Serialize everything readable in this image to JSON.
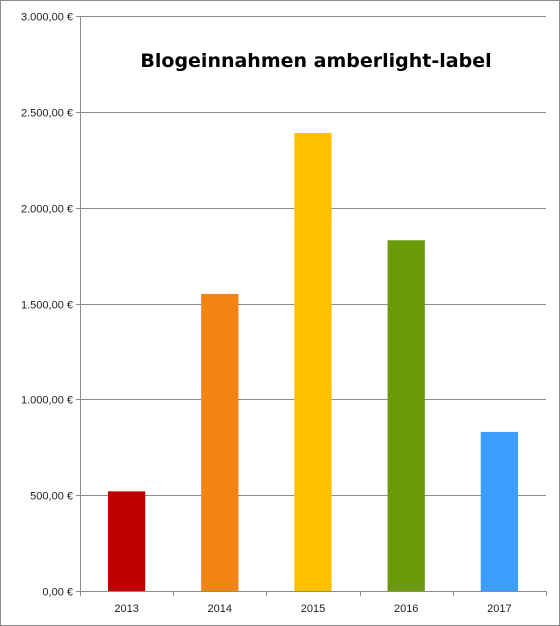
{
  "chart_data": {
    "type": "bar",
    "title": "Blogeinnahmen amberlight-label",
    "xlabel": "",
    "ylabel": "",
    "categories": [
      "2013",
      "2014",
      "2015",
      "2016",
      "2017"
    ],
    "values": [
      520,
      1550,
      2390,
      1830,
      830
    ],
    "colors": [
      "#c00000",
      "#f18414",
      "#ffc000",
      "#6a9a0a",
      "#3a9dff"
    ],
    "ylim": [
      0,
      3000
    ],
    "y_tick_values": [
      0,
      500,
      1000,
      1500,
      2000,
      2500,
      3000
    ],
    "y_tick_labels": [
      "0,00 €",
      "500,00 €",
      "1.000,00 €",
      "1.500,00 €",
      "2.000,00 €",
      "2.500,00 €",
      "3.000,00 €"
    ],
    "grid": true,
    "legend": "none"
  }
}
